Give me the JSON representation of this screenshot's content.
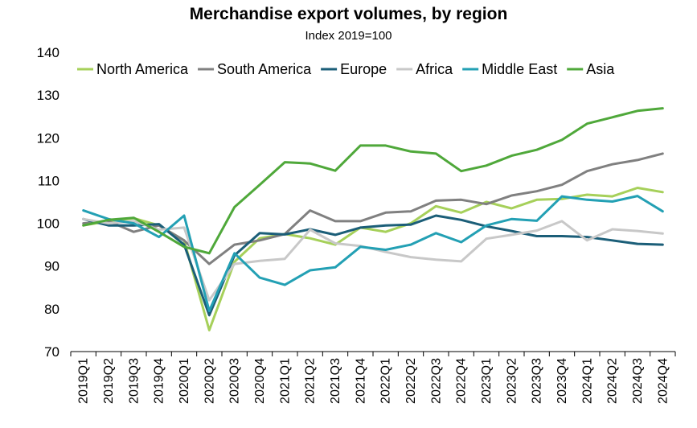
{
  "chart_data": {
    "type": "line",
    "title": "Merchandise export volumes, by region",
    "subtitle": "Index 2019=100",
    "xlabel": "",
    "ylabel": "",
    "ylim": [
      70,
      140
    ],
    "yticks": [
      70,
      80,
      90,
      100,
      110,
      120,
      130,
      140
    ],
    "categories": [
      "2019Q1",
      "2019Q2",
      "2019Q3",
      "2019Q4",
      "2020Q1",
      "2020Q2",
      "2020Q3",
      "2020Q4",
      "2021Q1",
      "2021Q2",
      "2021Q3",
      "2021Q4",
      "2022Q1",
      "2022Q2",
      "2022Q3",
      "2022Q4",
      "2023Q1",
      "2023Q2",
      "2023Q3",
      "2023Q4",
      "2024Q1",
      "2024Q2",
      "2024Q3",
      "2024Q4"
    ],
    "legend_position": "top",
    "series": [
      {
        "name": "North America",
        "color": "#a6d05a",
        "values": [
          99.5,
          100.5,
          101.2,
          99.5,
          96,
          75,
          91,
          96.5,
          97.5,
          96.5,
          95,
          99,
          98,
          100,
          104,
          102.5,
          105,
          103.5,
          105.5,
          105.7,
          106.7,
          106.3,
          108.3,
          107.3
        ]
      },
      {
        "name": "South America",
        "color": "#808080",
        "values": [
          100,
          100.5,
          98,
          99.5,
          96,
          90.5,
          95,
          96,
          97.5,
          103,
          100.5,
          100.5,
          102.5,
          102.8,
          105.3,
          105.5,
          104.5,
          106.5,
          107.5,
          109,
          112.2,
          113.8,
          114.8,
          116.3
        ]
      },
      {
        "name": "Europe",
        "color": "#1b5e78",
        "values": [
          101,
          99.5,
          99.5,
          99.8,
          95,
          78.5,
          92.5,
          97.7,
          97.4,
          98.6,
          97.3,
          99,
          99.5,
          99.7,
          101.8,
          100.8,
          99.3,
          98.2,
          97,
          97,
          96.8,
          96,
          95.2,
          95
        ]
      },
      {
        "name": "Africa",
        "color": "#c8c8c8",
        "values": [
          101,
          100,
          100.5,
          98.5,
          99,
          82,
          90.5,
          91.2,
          91.7,
          98.5,
          95.3,
          94.7,
          93.3,
          92.1,
          91.5,
          91.1,
          96.4,
          97.3,
          98.3,
          100.5,
          96,
          98.6,
          98.2,
          97.6
        ]
      },
      {
        "name": "Middle East",
        "color": "#23a0b4",
        "values": [
          103,
          101,
          100,
          96.8,
          101.8,
          79.5,
          93,
          87.3,
          85.6,
          89,
          89.7,
          94.5,
          93.8,
          95,
          97.7,
          95.6,
          99.5,
          101,
          100.6,
          106.3,
          105.5,
          105.1,
          106.4,
          102.8
        ]
      },
      {
        "name": "Asia",
        "color": "#4fa83a",
        "values": [
          99.5,
          100.8,
          101.3,
          98,
          94.5,
          93,
          103.8,
          109,
          114.3,
          114,
          112.3,
          118.2,
          118.2,
          116.8,
          116.3,
          112.2,
          113.5,
          115.8,
          117.2,
          119.5,
          123.3,
          124.8,
          126.3,
          126.9
        ]
      }
    ]
  }
}
